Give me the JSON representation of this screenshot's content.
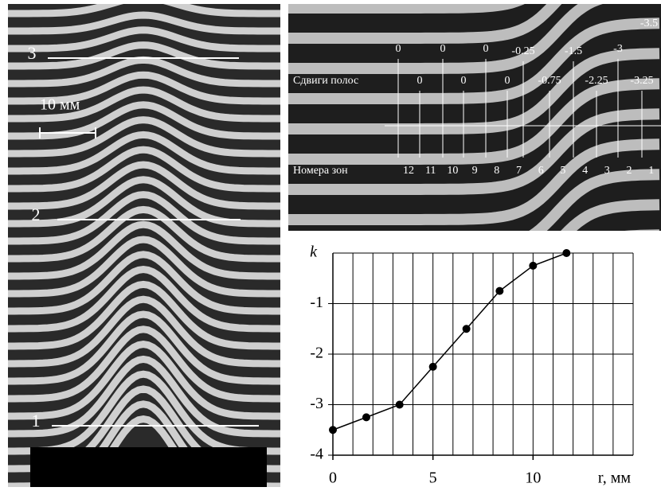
{
  "left_image": {
    "line_labels": [
      "3",
      "2",
      "1"
    ],
    "scale_label": "10 мм"
  },
  "top_image": {
    "shifts_label": "Сдвиги полос",
    "zones_label": "Номера зон",
    "shifts_top": [
      "0",
      "0",
      "0",
      "-0.25",
      "-1.5",
      "-3",
      "-3.5"
    ],
    "shifts_bottom": [
      "0",
      "0",
      "0",
      "-0.75",
      "-2.25",
      "-3.25"
    ],
    "zones": [
      "12",
      "11",
      "10",
      "9",
      "8",
      "7",
      "6",
      "5",
      "4",
      "3",
      "2",
      "1"
    ]
  },
  "chart_data": {
    "type": "line",
    "color": "#000000",
    "x": [
      0,
      1.67,
      3.33,
      5,
      6.67,
      8.33,
      10,
      11.67
    ],
    "values": [
      -3.5,
      -3.25,
      -3,
      -2.25,
      -1.5,
      -0.75,
      -0.25,
      0
    ],
    "xlim": [
      0,
      15
    ],
    "ylim": [
      -4,
      0
    ],
    "xticks": [
      0,
      5,
      10
    ],
    "yticks": [
      -4,
      -3,
      -2,
      -1
    ],
    "xgrid": [
      0,
      1,
      2,
      3,
      4,
      5,
      6,
      7,
      8,
      9,
      10,
      11,
      12,
      13,
      14,
      15
    ],
    "ylabel": "k",
    "xlabel": "r, мм"
  }
}
